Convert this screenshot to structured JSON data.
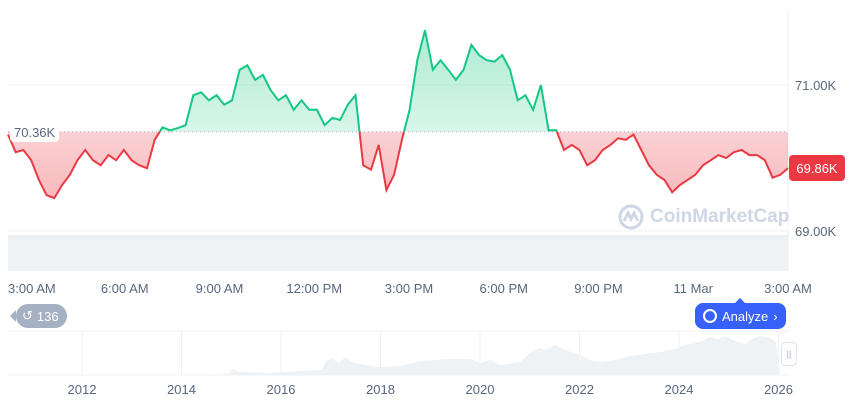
{
  "chart_data": {
    "type": "area",
    "title": "",
    "xlabel": "",
    "ylabel": "",
    "ylim": [
      68.8,
      71.9
    ],
    "y_ticks": [
      "71.00K",
      "69.00K"
    ],
    "x_ticks": [
      "3:00 AM",
      "6:00 AM",
      "9:00 AM",
      "12:00 PM",
      "3:00 PM",
      "6:00 PM",
      "9:00 PM",
      "11 Mar",
      "3:00 AM"
    ],
    "baseline": 70.36,
    "baseline_label": "70.36K",
    "current_value": 69.86,
    "current_label": "69.86K",
    "above_color": "#16c784",
    "below_color": "#ea3943",
    "grid": true,
    "prices": [
      70.32,
      70.08,
      70.11,
      69.97,
      69.7,
      69.49,
      69.45,
      69.63,
      69.77,
      69.97,
      70.11,
      69.97,
      69.9,
      70.04,
      69.97,
      70.11,
      69.97,
      69.9,
      69.86,
      70.25,
      70.42,
      70.38,
      70.41,
      70.45,
      70.86,
      70.9,
      70.79,
      70.86,
      70.73,
      70.79,
      71.21,
      71.27,
      71.07,
      71.14,
      70.93,
      70.79,
      70.86,
      70.66,
      70.79,
      70.66,
      70.66,
      70.45,
      70.55,
      70.52,
      70.73,
      70.86,
      69.9,
      69.84,
      70.18,
      69.56,
      69.77,
      70.25,
      70.66,
      71.34,
      71.75,
      71.21,
      71.34,
      71.21,
      71.07,
      71.21,
      71.55,
      71.41,
      71.34,
      71.32,
      71.41,
      71.21,
      70.79,
      70.86,
      70.66,
      71.0,
      70.38,
      70.38,
      70.11,
      70.18,
      70.11,
      69.9,
      69.97,
      70.11,
      70.18,
      70.27,
      70.25,
      70.32,
      70.11,
      69.9,
      69.77,
      69.7,
      69.53,
      69.63,
      69.7,
      69.77,
      69.9,
      69.97,
      70.04,
      70.0,
      70.08,
      70.11,
      70.04,
      70.04,
      69.97,
      69.73,
      69.77,
      69.86
    ],
    "navigator": {
      "x_ticks": [
        "2012",
        "2014",
        "2016",
        "2018",
        "2020",
        "2022",
        "2024",
        "2026"
      ]
    }
  },
  "controls": {
    "history_count": "136",
    "analyze_label": "Analyze",
    "watermark": "CoinMarketCap"
  }
}
